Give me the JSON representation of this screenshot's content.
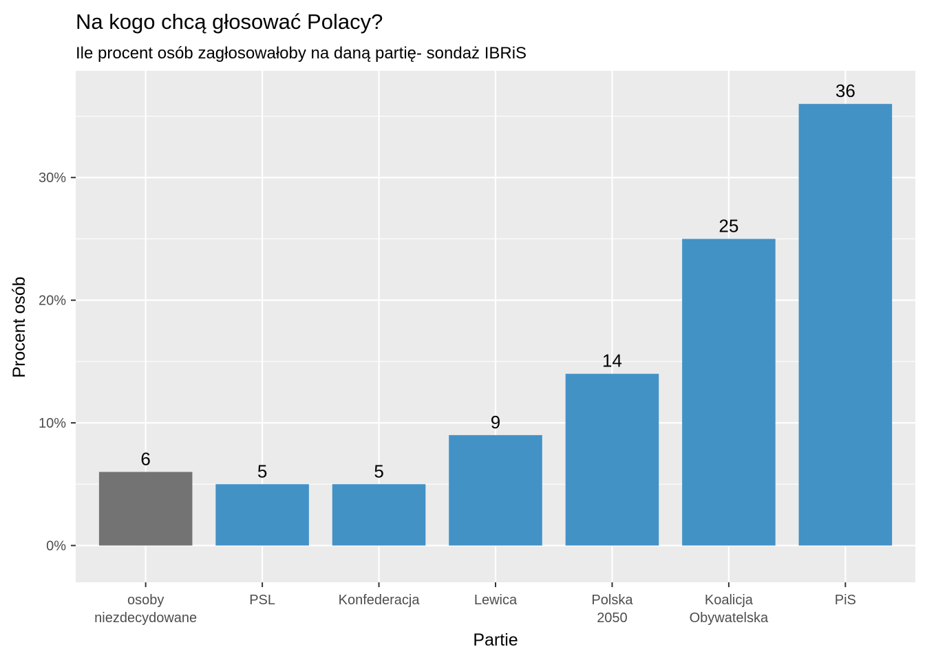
{
  "chart_data": {
    "type": "bar",
    "title": "Na kogo chcą głosować Polacy?",
    "subtitle": "Ile procent osób zagłosowałoby na daną partię- sondaż IBRiS",
    "xlabel": "Partie",
    "ylabel": "Procent osób",
    "categories": [
      [
        "osoby",
        "niezdecydowane"
      ],
      [
        "PSL"
      ],
      [
        "Konfederacja"
      ],
      [
        "Lewica"
      ],
      [
        "Polska",
        "2050"
      ],
      [
        "Koalicja",
        "Obywatelska"
      ],
      [
        "PiS"
      ]
    ],
    "values": [
      6,
      5,
      5,
      9,
      14,
      25,
      36
    ],
    "data_labels": [
      "6",
      "5",
      "5",
      "9",
      "14",
      "25",
      "36"
    ],
    "bar_colors": [
      "#737373",
      "#4292c6",
      "#4292c6",
      "#4292c6",
      "#4292c6",
      "#4292c6",
      "#4292c6"
    ],
    "yticks": [
      0,
      10,
      20,
      30
    ],
    "ytick_labels": [
      "0%",
      "10%",
      "20%",
      "30%"
    ],
    "ylim": [
      -3,
      38.7
    ],
    "grid": true,
    "panel_background": "#ebebeb",
    "grid_color": "#ffffff"
  }
}
